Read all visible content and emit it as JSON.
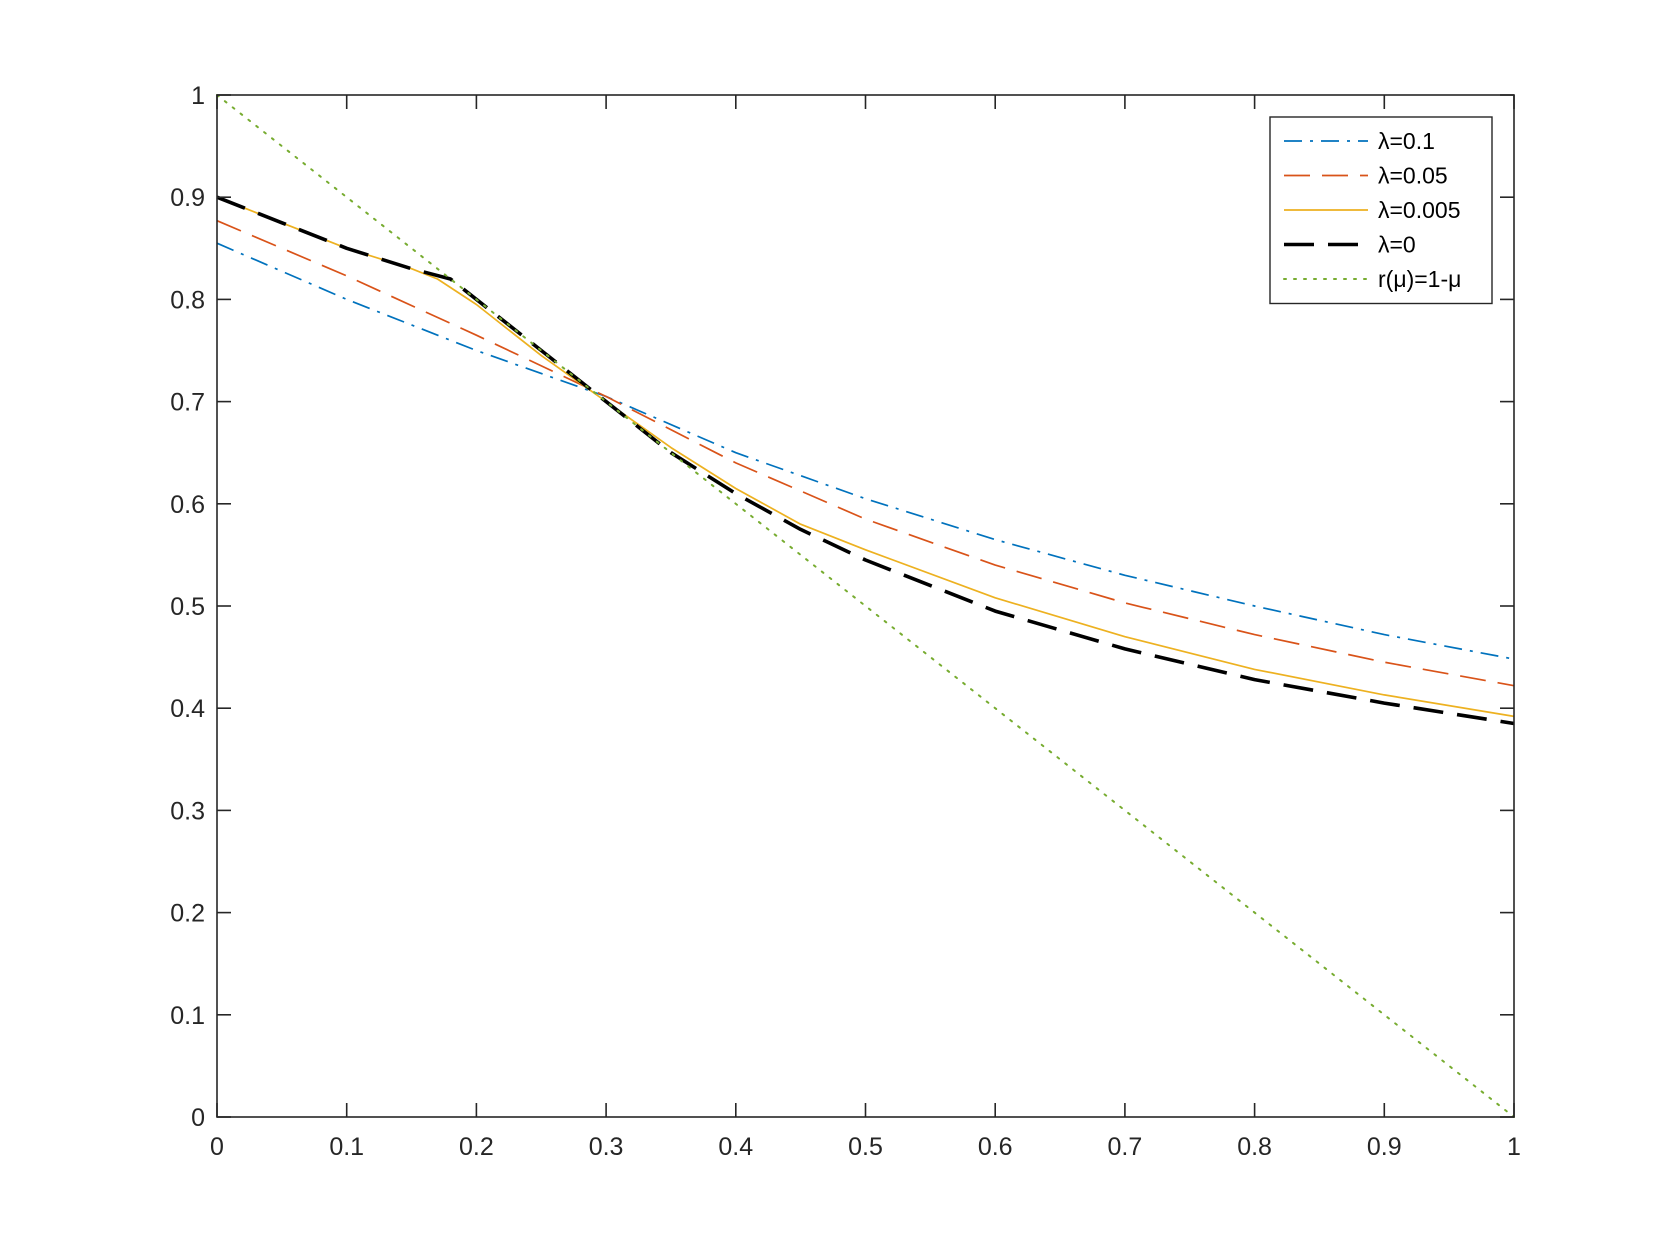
{
  "chart_data": {
    "type": "line",
    "title": "",
    "xlabel": "",
    "ylabel": "",
    "xlim": [
      0,
      1
    ],
    "ylim": [
      0,
      1
    ],
    "xticks": [
      "0",
      "0.1",
      "0.2",
      "0.3",
      "0.4",
      "0.5",
      "0.6",
      "0.7",
      "0.8",
      "0.9",
      "1"
    ],
    "yticks": [
      "0",
      "0.1",
      "0.2",
      "0.3",
      "0.4",
      "0.5",
      "0.6",
      "0.7",
      "0.8",
      "0.9",
      "1"
    ],
    "grid": false,
    "legend_position": "top-right",
    "series": [
      {
        "name": "λ=0.1",
        "color": "#0072BD",
        "style": "dash-dot",
        "x": [
          0,
          0.1,
          0.2,
          0.3,
          0.4,
          0.5,
          0.6,
          0.7,
          0.8,
          0.9,
          1.0
        ],
        "y": [
          0.855,
          0.8,
          0.75,
          0.705,
          0.65,
          0.605,
          0.565,
          0.53,
          0.5,
          0.472,
          0.448
        ]
      },
      {
        "name": "λ=0.05",
        "color": "#D95319",
        "style": "dash",
        "x": [
          0,
          0.1,
          0.2,
          0.3,
          0.4,
          0.5,
          0.6,
          0.7,
          0.8,
          0.9,
          1.0
        ],
        "y": [
          0.877,
          0.823,
          0.765,
          0.705,
          0.64,
          0.585,
          0.54,
          0.503,
          0.472,
          0.445,
          0.422
        ]
      },
      {
        "name": "λ=0.005",
        "color": "#EDB120",
        "style": "solid",
        "x": [
          0,
          0.05,
          0.1,
          0.15,
          0.17,
          0.2,
          0.25,
          0.3,
          0.35,
          0.4,
          0.45,
          0.5,
          0.6,
          0.7,
          0.8,
          0.9,
          1.0
        ],
        "y": [
          0.9,
          0.875,
          0.85,
          0.83,
          0.82,
          0.795,
          0.745,
          0.7,
          0.655,
          0.615,
          0.58,
          0.555,
          0.508,
          0.47,
          0.438,
          0.413,
          0.392
        ]
      },
      {
        "name": "λ=0",
        "color": "#000000",
        "style": "long-dash",
        "x": [
          0,
          0.05,
          0.1,
          0.15,
          0.18,
          0.25,
          0.3,
          0.35,
          0.4,
          0.45,
          0.5,
          0.6,
          0.7,
          0.8,
          0.9,
          1.0
        ],
        "y": [
          0.9,
          0.875,
          0.85,
          0.83,
          0.82,
          0.75,
          0.7,
          0.65,
          0.61,
          0.575,
          0.545,
          0.495,
          0.458,
          0.428,
          0.405,
          0.385
        ]
      },
      {
        "name": "r(μ)=1-μ",
        "color": "#77AC30",
        "style": "dotted",
        "x": [
          0,
          1
        ],
        "y": [
          1,
          0
        ]
      }
    ]
  }
}
